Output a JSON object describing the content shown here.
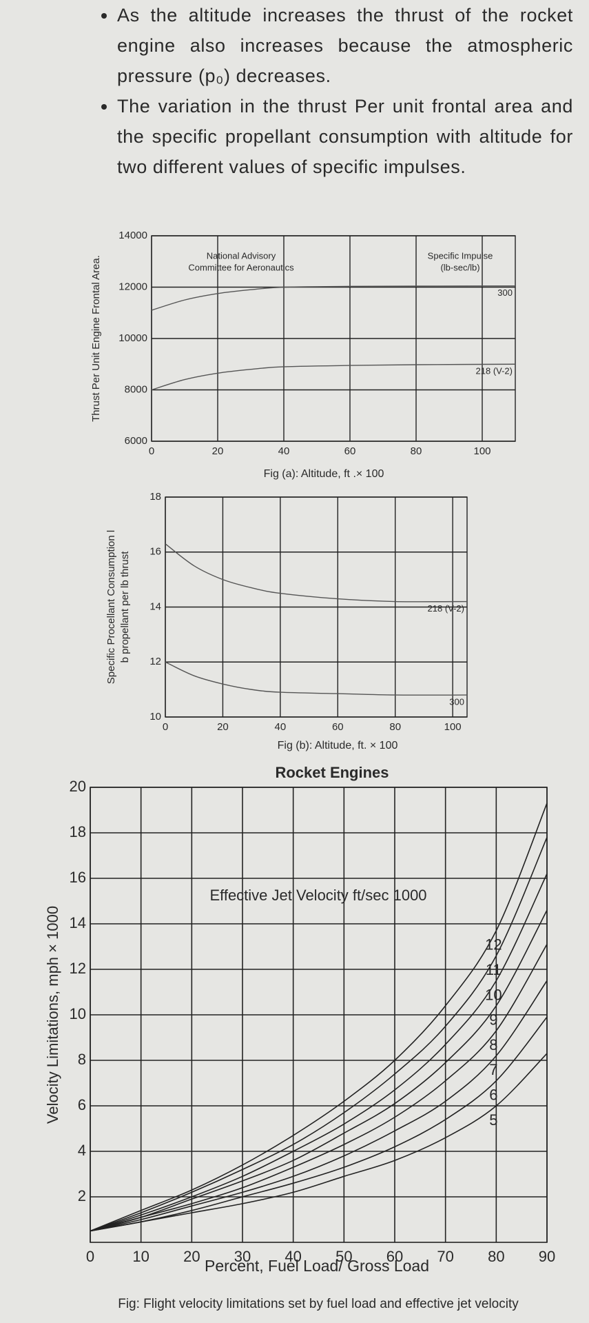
{
  "bullets": [
    "As the altitude increases the thrust of the rocket engine also increases because the atmospheric pressure (p₀) decreases.",
    "The variation in the thrust Per unit frontal area and the specific propellant consumption with altitude for two different values of specific impulses."
  ],
  "chart_data": [
    {
      "type": "line",
      "xlabel": "Fig (a): Altitude, ft .× 100",
      "ylabel": [
        "Thrust Per Unit Engine Frontal Area."
      ],
      "annotations": [
        [
          "National Advisory",
          "Committee for Aeronautics"
        ],
        [
          "Specific Impulse",
          "(lb-sec/lb)"
        ]
      ],
      "x": [
        0,
        10,
        20,
        30,
        40,
        60,
        80,
        110
      ],
      "series": [
        {
          "name": "300",
          "color": "#555555",
          "values": [
            11100,
            11500,
            11750,
            11900,
            12000,
            12030,
            12040,
            12050
          ]
        },
        {
          "name": "218 (V-2)",
          "color": "#555555",
          "values": [
            8000,
            8400,
            8650,
            8800,
            8900,
            8950,
            8980,
            9000
          ]
        }
      ],
      "xlim": [
        0,
        110
      ],
      "ylim": [
        6000,
        14000
      ],
      "xticks": [
        0,
        20,
        40,
        60,
        80,
        100
      ],
      "yticks": [
        6000,
        8000,
        10000,
        12000,
        14000
      ],
      "grid": true
    },
    {
      "type": "line",
      "xlabel": "Fig (b): Altitude, ft. × 100",
      "ylabel": [
        "Specific Procellant Consumption l",
        "b propellant per lb thrust"
      ],
      "x": [
        0,
        10,
        20,
        30,
        40,
        60,
        80,
        105
      ],
      "series": [
        {
          "name": "218 (V-2)",
          "color": "#555555",
          "values": [
            16.3,
            15.5,
            15.0,
            14.7,
            14.5,
            14.3,
            14.2,
            14.2
          ]
        },
        {
          "name": "300",
          "color": "#555555",
          "values": [
            12.0,
            11.5,
            11.2,
            11.0,
            10.9,
            10.85,
            10.8,
            10.8
          ]
        }
      ],
      "xlim": [
        0,
        105
      ],
      "ylim": [
        10,
        18
      ],
      "xticks": [
        0,
        20,
        40,
        60,
        80,
        100
      ],
      "yticks": [
        10,
        12,
        14,
        16,
        18
      ],
      "grid": true
    },
    {
      "type": "line",
      "title": "Rocket Engines",
      "xlabel": "Percent, Fuel Load/ Gross Load",
      "ylabel": [
        "Velocity Limitations, mph × 1000"
      ],
      "annotations": [
        [
          "Effective Jet Velocity ft/sec 1000"
        ]
      ],
      "caption": "Fig: Flight velocity limitations set by fuel load and effective jet velocity",
      "x": [
        0,
        10,
        20,
        30,
        40,
        50,
        60,
        70,
        80,
        90
      ],
      "series": [
        {
          "name": "5",
          "color": "#222222",
          "values": [
            0.5,
            0.9,
            1.3,
            1.7,
            2.2,
            2.9,
            3.6,
            4.6,
            6.0,
            8.3
          ]
        },
        {
          "name": "6",
          "color": "#222222",
          "values": [
            0.5,
            0.9,
            1.4,
            2.0,
            2.6,
            3.3,
            4.2,
            5.4,
            7.1,
            9.9
          ]
        },
        {
          "name": "7",
          "color": "#222222",
          "values": [
            0.5,
            1.0,
            1.6,
            2.2,
            2.9,
            3.8,
            4.9,
            6.2,
            8.2,
            11.5
          ]
        },
        {
          "name": "8",
          "color": "#222222",
          "values": [
            0.5,
            1.1,
            1.7,
            2.4,
            3.3,
            4.3,
            5.5,
            7.1,
            9.3,
            13.1
          ]
        },
        {
          "name": "9",
          "color": "#222222",
          "values": [
            0.5,
            1.1,
            1.9,
            2.7,
            3.6,
            4.8,
            6.1,
            7.9,
            10.4,
            14.6
          ]
        },
        {
          "name": "10",
          "color": "#222222",
          "values": [
            0.5,
            1.2,
            2.0,
            2.9,
            4.0,
            5.2,
            6.7,
            8.7,
            11.5,
            16.2
          ]
        },
        {
          "name": "11",
          "color": "#222222",
          "values": [
            0.5,
            1.3,
            2.2,
            3.2,
            4.3,
            5.7,
            7.4,
            9.5,
            12.6,
            17.8
          ]
        },
        {
          "name": "12",
          "color": "#222222",
          "values": [
            0.5,
            1.4,
            2.3,
            3.4,
            4.7,
            6.2,
            8.0,
            10.4,
            13.7,
            19.3
          ]
        }
      ],
      "xlim": [
        0,
        90
      ],
      "ylim": [
        0,
        20
      ],
      "xticks": [
        0,
        10,
        20,
        30,
        40,
        50,
        60,
        70,
        80,
        90
      ],
      "yticks": [
        2,
        4,
        6,
        8,
        10,
        12,
        14,
        16,
        18,
        20
      ],
      "grid": true
    }
  ]
}
